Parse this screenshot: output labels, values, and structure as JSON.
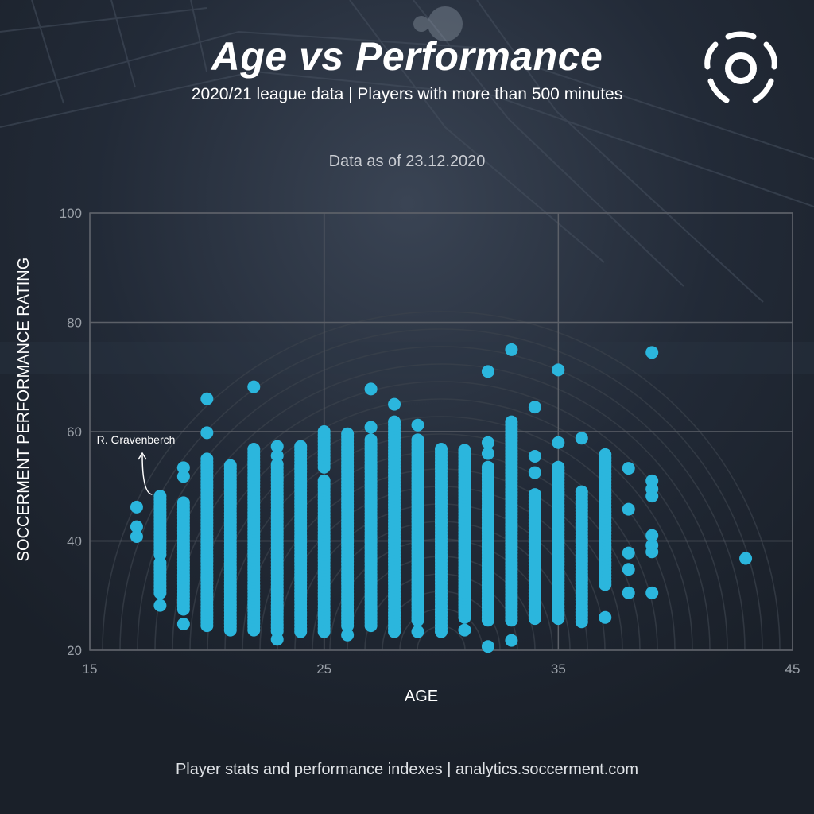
{
  "header": {
    "title": "Age vs Performance",
    "subtitle": "2020/21 league data | Players with more than 500 minutes",
    "data_date": "Data as of 23.12.2020"
  },
  "footer": {
    "text": "Player stats and performance indexes  |  analytics.soccerment.com"
  },
  "logo": {
    "icon": "soccerment-logo-icon"
  },
  "colors": {
    "background": "#1b2230",
    "points": "#2bb6dd",
    "grid": "#5c6068"
  },
  "chart_data": {
    "type": "scatter",
    "title": "Age vs Performance",
    "xlabel": "AGE",
    "ylabel": "SOCCERMENT PERFORMANCE RATING",
    "xlim": [
      15,
      45
    ],
    "ylim": [
      20,
      100
    ],
    "x_ticks": [
      15,
      25,
      35,
      45
    ],
    "y_ticks": [
      20,
      40,
      60,
      80,
      100
    ],
    "grid": true,
    "annotation": {
      "text": "R. Gravenberch",
      "x": 18,
      "y": 48.2
    },
    "columns": [
      {
        "x": 17,
        "y_min": 40.8,
        "y_max": 46.2,
        "points": [
          46.2,
          42.6,
          40.8
        ]
      },
      {
        "x": 18,
        "y_min": 28.2,
        "y_max": 48.2,
        "segments": [
          [
            30.5,
            36.0
          ],
          [
            37.5,
            48.2
          ]
        ],
        "points": [
          28.2
        ]
      },
      {
        "x": 19,
        "y_min": 24.8,
        "y_max": 53.4,
        "segments": [
          [
            27.5,
            47.0
          ]
        ],
        "points": [
          24.8,
          51.8,
          53.4
        ]
      },
      {
        "x": 20,
        "y_min": 24.5,
        "y_max": 66.0,
        "segments": [
          [
            24.5,
            55.0
          ]
        ],
        "points": [
          59.8,
          66.0
        ]
      },
      {
        "x": 21,
        "y_min": 23.7,
        "y_max": 53.8,
        "segments": [
          [
            23.7,
            53.8
          ]
        ]
      },
      {
        "x": 22,
        "y_min": 23.7,
        "y_max": 68.2,
        "segments": [
          [
            23.7,
            56.8
          ]
        ],
        "points": [
          68.2
        ]
      },
      {
        "x": 23,
        "y_min": 22.0,
        "y_max": 57.3,
        "segments": [
          [
            23.5,
            54.0
          ]
        ],
        "points": [
          22.0,
          55.6,
          57.3
        ]
      },
      {
        "x": 24,
        "y_min": 23.4,
        "y_max": 57.3,
        "segments": [
          [
            23.4,
            57.3
          ]
        ]
      },
      {
        "x": 25,
        "y_min": 23.4,
        "y_max": 60.0,
        "segments": [
          [
            23.4,
            51.0
          ],
          [
            53.5,
            60.0
          ]
        ]
      },
      {
        "x": 26,
        "y_min": 22.8,
        "y_max": 59.6,
        "segments": [
          [
            24.5,
            59.6
          ]
        ],
        "points": [
          22.8
        ]
      },
      {
        "x": 27,
        "y_min": 24.5,
        "y_max": 67.8,
        "segments": [
          [
            24.5,
            58.5
          ]
        ],
        "points": [
          60.8,
          67.8
        ]
      },
      {
        "x": 28,
        "y_min": 23.4,
        "y_max": 65.0,
        "segments": [
          [
            23.4,
            61.8
          ]
        ],
        "points": [
          65.0
        ]
      },
      {
        "x": 29,
        "y_min": 23.4,
        "y_max": 61.2,
        "segments": [
          [
            25.5,
            58.5
          ]
        ],
        "points": [
          23.4,
          61.2
        ]
      },
      {
        "x": 30,
        "y_min": 23.4,
        "y_max": 56.8,
        "segments": [
          [
            23.4,
            56.8
          ]
        ]
      },
      {
        "x": 31,
        "y_min": 23.7,
        "y_max": 56.6,
        "segments": [
          [
            26.0,
            56.6
          ]
        ],
        "points": [
          23.7
        ]
      },
      {
        "x": 32,
        "y_min": 20.7,
        "y_max": 71.0,
        "segments": [
          [
            25.5,
            53.5
          ]
        ],
        "points": [
          20.7,
          56.0,
          58.0,
          71.0
        ]
      },
      {
        "x": 33,
        "y_min": 21.8,
        "y_max": 75.0,
        "segments": [
          [
            25.5,
            61.8
          ]
        ],
        "points": [
          21.8,
          75.0
        ]
      },
      {
        "x": 34,
        "y_min": 25.8,
        "y_max": 64.5,
        "segments": [
          [
            25.8,
            48.5
          ]
        ],
        "points": [
          52.5,
          55.5,
          64.5
        ]
      },
      {
        "x": 35,
        "y_min": 25.8,
        "y_max": 71.3,
        "segments": [
          [
            25.8,
            53.5
          ]
        ],
        "points": [
          58.0,
          71.3
        ]
      },
      {
        "x": 36,
        "y_min": 25.2,
        "y_max": 58.8,
        "segments": [
          [
            25.2,
            49.0
          ]
        ],
        "points": [
          58.8
        ]
      },
      {
        "x": 37,
        "y_min": 26.0,
        "y_max": 55.8,
        "segments": [
          [
            32.0,
            55.8
          ]
        ],
        "points": [
          26.0
        ]
      },
      {
        "x": 38,
        "y_min": 30.5,
        "y_max": 53.3,
        "points": [
          30.5,
          34.8,
          37.8,
          45.8,
          53.3
        ]
      },
      {
        "x": 39,
        "y_min": 30.5,
        "y_max": 74.5,
        "points": [
          30.5,
          38.0,
          39.2,
          41.0,
          48.2,
          49.5,
          51.0,
          74.5
        ]
      },
      {
        "x": 43,
        "y_min": 36.8,
        "y_max": 36.8,
        "points": [
          36.8
        ]
      }
    ]
  }
}
